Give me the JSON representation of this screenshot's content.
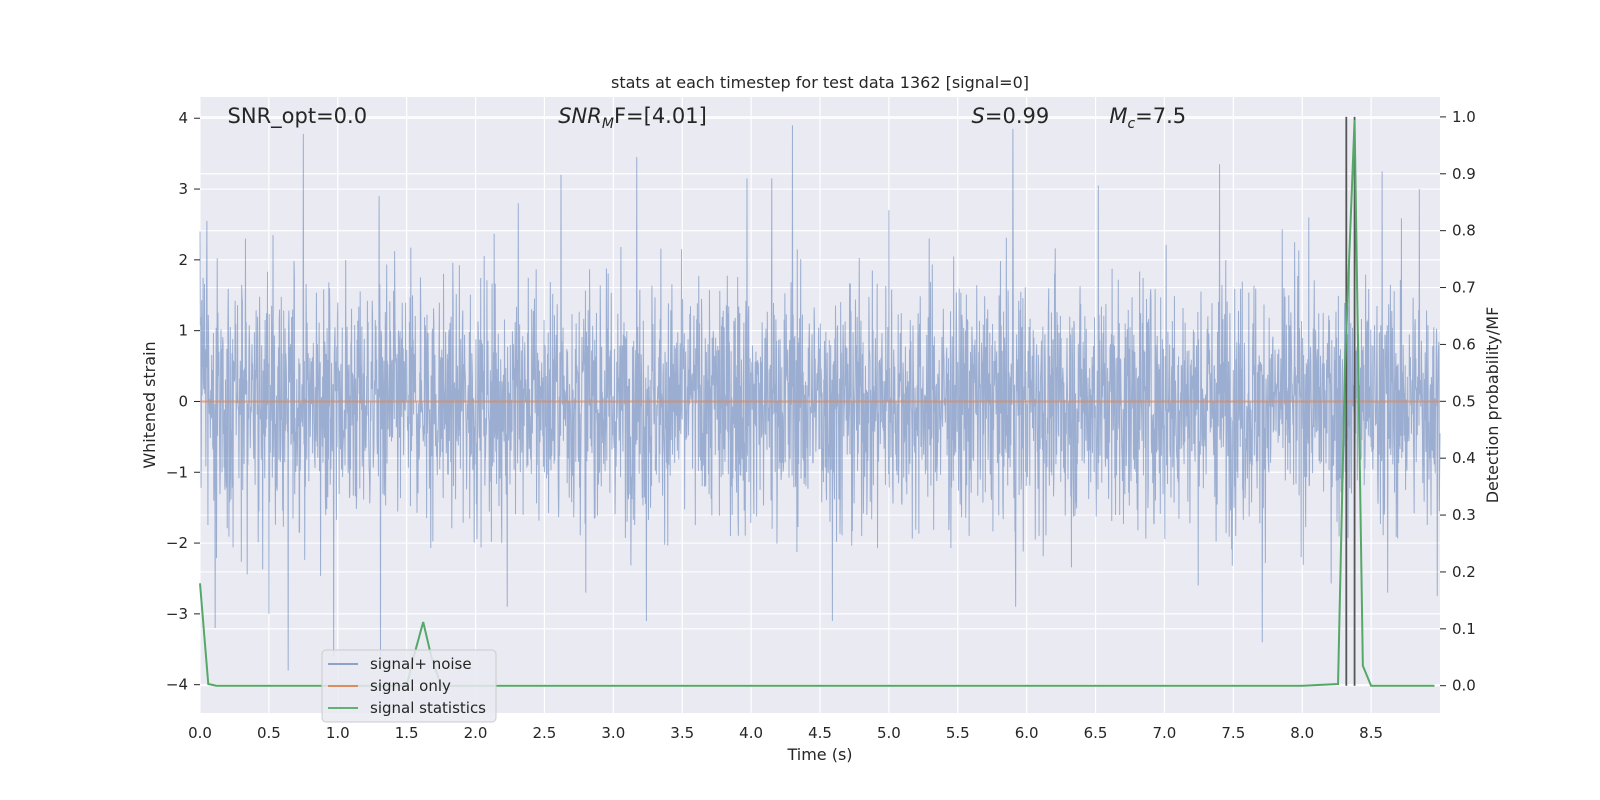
{
  "chart_data": {
    "type": "line",
    "title": "stats at each timestep for test data 1362 [signal=0]",
    "xlabel": "Time (s)",
    "ylabel": "Whitened strain",
    "ylabel_right": "Detection probability/MF",
    "xlim": [
      0.0,
      9.0
    ],
    "ylim": [
      -4.4,
      4.3
    ],
    "ylim_right": [
      -0.048,
      1.035
    ],
    "x_ticks": [
      "0.0",
      "0.5",
      "1.0",
      "1.5",
      "2.0",
      "2.5",
      "3.0",
      "3.5",
      "4.0",
      "4.5",
      "5.0",
      "5.5",
      "6.0",
      "6.5",
      "7.0",
      "7.5",
      "8.0",
      "8.5"
    ],
    "y_ticks": [
      "−4",
      "−3",
      "−2",
      "−1",
      "0",
      "1",
      "2",
      "3",
      "4"
    ],
    "y_ticks_right": [
      "0.0",
      "0.1",
      "0.2",
      "0.3",
      "0.4",
      "0.5",
      "0.6",
      "0.7",
      "0.8",
      "0.9",
      "1.0"
    ],
    "grid": true,
    "legend_position": "lower-left",
    "annotations": [
      {
        "base": "SNR_opt=0.0",
        "sub": "",
        "rest": "",
        "x": 0.2
      },
      {
        "base": "SNR",
        "sub": "M",
        "rest": "F=[4.01]",
        "x": 2.6,
        "italic": true
      },
      {
        "base": "S",
        "sub": "",
        "rest": "=0.99",
        "x": 5.6,
        "italic": true
      },
      {
        "base": "M",
        "sub": "c",
        "rest": "=7.5",
        "x": 6.6,
        "italic": true
      }
    ],
    "series": [
      {
        "name": "signal+ noise",
        "color": "#4c72b0",
        "axis": "left",
        "duration": 9.0,
        "rms": 0.85,
        "spikes": [
          [
            0.0,
            2.4
          ],
          [
            0.05,
            2.55
          ],
          [
            0.11,
            -3.2
          ],
          [
            0.33,
            2.3
          ],
          [
            0.5,
            -3.0
          ],
          [
            0.64,
            -3.8
          ],
          [
            0.75,
            3.78
          ],
          [
            0.97,
            -3.6
          ],
          [
            1.3,
            2.9
          ],
          [
            1.31,
            -3.6
          ],
          [
            2.23,
            -2.9
          ],
          [
            2.31,
            2.8
          ],
          [
            2.62,
            3.2
          ],
          [
            2.8,
            -2.7
          ],
          [
            3.17,
            3.45
          ],
          [
            3.24,
            -3.1
          ],
          [
            3.97,
            3.15
          ],
          [
            4.15,
            3.15
          ],
          [
            4.3,
            3.9
          ],
          [
            4.59,
            -3.1
          ],
          [
            5.0,
            2.7
          ],
          [
            5.9,
            3.85
          ],
          [
            5.92,
            -2.9
          ],
          [
            6.52,
            3.05
          ],
          [
            7.4,
            3.35
          ],
          [
            7.71,
            -3.4
          ],
          [
            8.32,
            3.88
          ],
          [
            8.58,
            3.25
          ],
          [
            8.62,
            -2.7
          ],
          [
            8.85,
            3.0
          ],
          [
            8.98,
            -2.75
          ]
        ]
      },
      {
        "name": "signal only",
        "color": "#dd8452",
        "axis": "left",
        "value": 0.0
      },
      {
        "name": "signal statistics",
        "color": "#55a868",
        "axis": "right",
        "x": [
          0.0,
          0.06,
          0.12,
          0.2,
          0.5,
          1.0,
          1.5,
          1.55,
          1.62,
          1.68,
          1.75,
          2.0,
          3.0,
          4.0,
          5.0,
          6.0,
          7.0,
          8.0,
          8.26,
          8.31,
          8.38,
          8.44,
          8.5,
          8.6,
          8.8,
          8.96
        ],
        "y": [
          0.18,
          0.003,
          0.0,
          0.0,
          0.0,
          0.0,
          0.0,
          0.05,
          0.112,
          0.05,
          0.0,
          0.0,
          0.0,
          0.0,
          0.0,
          0.0,
          0.0,
          0.0,
          0.003,
          0.56,
          0.995,
          0.035,
          0.0,
          0.0,
          0.0,
          0.0
        ]
      }
    ],
    "vlines": [
      8.32,
      8.38
    ]
  }
}
